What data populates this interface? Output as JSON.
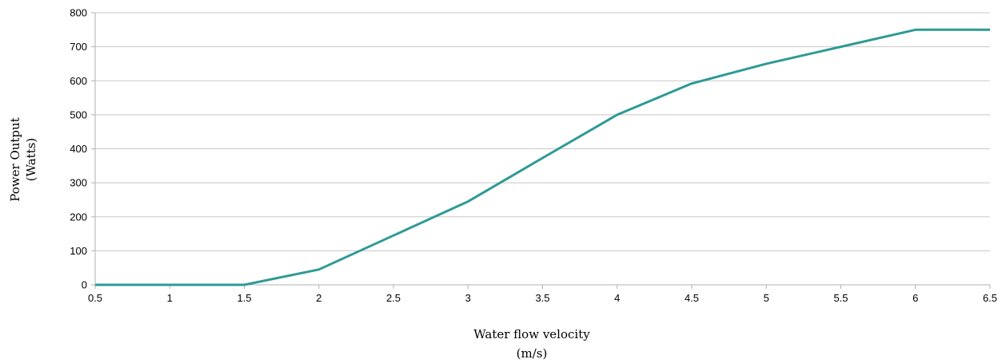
{
  "chart_data": {
    "type": "line",
    "title": "",
    "xlabel": [
      "Water flow velocity",
      "(m/s)"
    ],
    "ylabel": [
      "Power Output",
      "(Watts)"
    ],
    "x_ticks": [
      "0.5",
      "1",
      "1.5",
      "2",
      "2.5",
      "3",
      "3.5",
      "4",
      "4.5",
      "5",
      "5.5",
      "6",
      "6.5"
    ],
    "y_ticks": [
      "0",
      "100",
      "200",
      "300",
      "400",
      "500",
      "600",
      "700",
      "800"
    ],
    "xlim": [
      0.5,
      6.5
    ],
    "ylim": [
      0,
      800
    ],
    "grid": "horizontal",
    "legend": "none",
    "series": [
      {
        "color": "#2e9a96",
        "x": [
          0.5,
          1.5,
          2,
          2.5,
          3,
          3.5,
          4,
          4.5,
          5,
          5.5,
          6,
          6.5
        ],
        "y": [
          0,
          0,
          45,
          145,
          245,
          373,
          500,
          592,
          650,
          700,
          750,
          750
        ]
      }
    ]
  }
}
